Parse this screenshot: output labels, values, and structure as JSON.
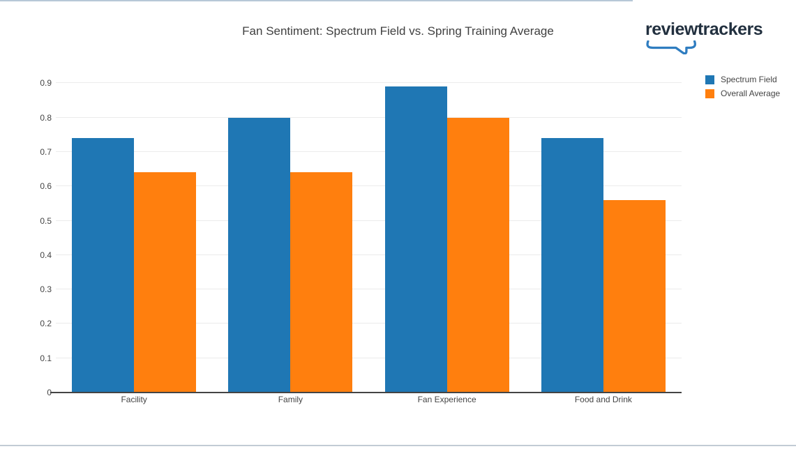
{
  "brand": {
    "logo_text": "reviewtrackers",
    "logo_color": "#22303f",
    "bracket_color": "#2f7dc0"
  },
  "chart_data": {
    "type": "bar",
    "title": "Fan Sentiment: Spectrum Field vs. Spring Training Average",
    "categories": [
      "Facility",
      "Family",
      "Fan Experience",
      "Food and Drink"
    ],
    "series": [
      {
        "name": "Spectrum Field",
        "color": "#1f77b4",
        "values": [
          0.74,
          0.8,
          0.89,
          0.74
        ]
      },
      {
        "name": "Overall Average",
        "color": "#ff7f0e",
        "values": [
          0.64,
          0.64,
          0.8,
          0.56
        ]
      }
    ],
    "xlabel": "",
    "ylabel": "",
    "ylim": [
      0,
      0.94
    ],
    "yticks": [
      0,
      0.1,
      0.2,
      0.3,
      0.4,
      0.5,
      0.6,
      0.7,
      0.8,
      0.9
    ],
    "ytick_labels": [
      "0",
      "0.1",
      "0.2",
      "0.3",
      "0.4",
      "0.5",
      "0.6",
      "0.7",
      "0.8",
      "0.9"
    ],
    "grid": true,
    "legend_position": "top-right",
    "axis_color": "#444444",
    "grid_color": "#ebebeb"
  }
}
